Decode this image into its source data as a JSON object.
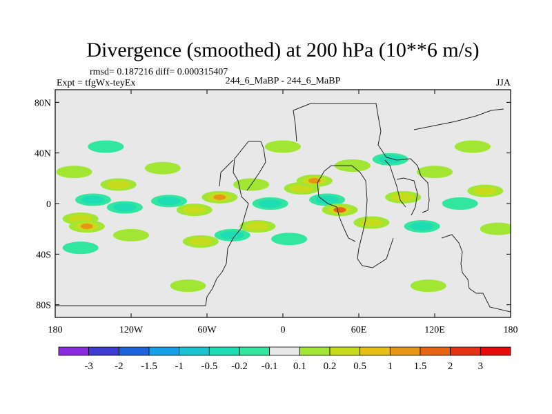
{
  "chart_data": {
    "type": "heatmap",
    "title": "Divergence (smoothed) at 200 hPa (10**6 m/s)",
    "stats_text": "rmsd= 0.187216 diff= 0.000315407",
    "left_label": "Expt = tfgWx-teyEx",
    "center_label": "244_6_MaBP - 244_6_MaBP",
    "season": "JJA",
    "x_ticks": [
      "180",
      "120W",
      "60W",
      "0",
      "60E",
      "120E",
      "180"
    ],
    "y_ticks": [
      "80N",
      "40N",
      "0",
      "40S",
      "80S"
    ],
    "lon_range": [
      -180,
      180
    ],
    "lat_range": [
      -90,
      90
    ],
    "colorbar_labels": [
      "-3",
      "-2",
      "-1.5",
      "-1",
      "-0.5",
      "-0.2",
      "-0.1",
      "0.1",
      "0.2",
      "0.5",
      "1",
      "1.5",
      "2",
      "3"
    ],
    "colorbar_colors": [
      "#8a2be2",
      "#3c3cd2",
      "#1e64dc",
      "#14a0e6",
      "#19c3d2",
      "#1edcb4",
      "#32e6a0",
      "#e8e8e8",
      "#a0e632",
      "#c8dc1e",
      "#e6be14",
      "#e69614",
      "#e66414",
      "#e63214",
      "#e60a0a"
    ],
    "blobs": [
      {
        "lon": -165,
        "lat": 25,
        "v": 0.2
      },
      {
        "lon": -150,
        "lat": 3,
        "v": -0.5
      },
      {
        "lon": -160,
        "lat": -12,
        "v": 0.3
      },
      {
        "lon": -155,
        "lat": -18,
        "v": 1
      },
      {
        "lon": -130,
        "lat": 15,
        "v": 0.3
      },
      {
        "lon": -125,
        "lat": -3,
        "v": -0.3
      },
      {
        "lon": -120,
        "lat": -25,
        "v": 0.2
      },
      {
        "lon": -95,
        "lat": 28,
        "v": 0.2
      },
      {
        "lon": -90,
        "lat": 2,
        "v": -0.4
      },
      {
        "lon": -70,
        "lat": -5,
        "v": 0.3
      },
      {
        "lon": -65,
        "lat": -30,
        "v": 0.4
      },
      {
        "lon": -50,
        "lat": 5,
        "v": 1
      },
      {
        "lon": -40,
        "lat": -25,
        "v": -0.3
      },
      {
        "lon": -25,
        "lat": 15,
        "v": 0.2
      },
      {
        "lon": -20,
        "lat": -18,
        "v": 0.3
      },
      {
        "lon": -10,
        "lat": 0,
        "v": -0.3
      },
      {
        "lon": 5,
        "lat": -28,
        "v": -0.2
      },
      {
        "lon": 15,
        "lat": 12,
        "v": 0.3
      },
      {
        "lon": 25,
        "lat": 18,
        "v": 1
      },
      {
        "lon": 35,
        "lat": 3,
        "v": -0.5
      },
      {
        "lon": 45,
        "lat": -5,
        "v": 1.5
      },
      {
        "lon": 55,
        "lat": 30,
        "v": 0.2
      },
      {
        "lon": 70,
        "lat": -15,
        "v": 0.3
      },
      {
        "lon": 85,
        "lat": 35,
        "v": -0.3
      },
      {
        "lon": 95,
        "lat": 5,
        "v": 0.5
      },
      {
        "lon": 110,
        "lat": -18,
        "v": -0.3
      },
      {
        "lon": 120,
        "lat": 25,
        "v": 0.2
      },
      {
        "lon": 140,
        "lat": 0,
        "v": -0.2
      },
      {
        "lon": 160,
        "lat": 10,
        "v": 0.3
      },
      {
        "lon": 170,
        "lat": -20,
        "v": 0.2
      },
      {
        "lon": 150,
        "lat": 45,
        "v": 0.2
      },
      {
        "lon": -140,
        "lat": 45,
        "v": -0.2
      },
      {
        "lon": 0,
        "lat": 45,
        "v": 0.2
      },
      {
        "lon": -160,
        "lat": -35,
        "v": -0.2
      },
      {
        "lon": 115,
        "lat": -65,
        "v": 0.2
      },
      {
        "lon": -75,
        "lat": -65,
        "v": 0.2
      }
    ]
  }
}
